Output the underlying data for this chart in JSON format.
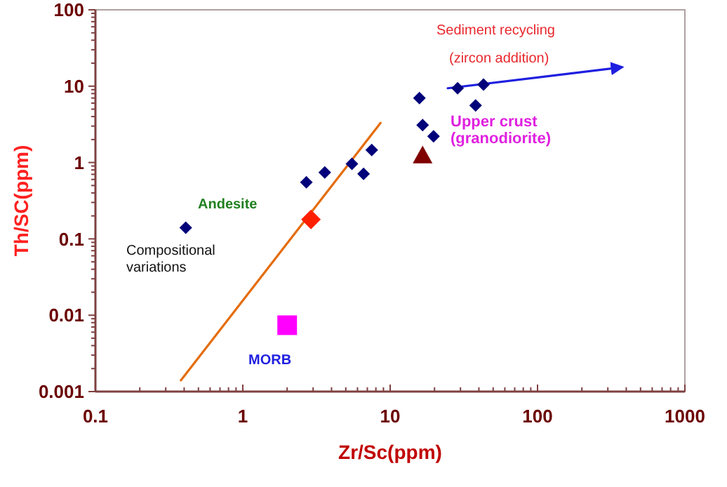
{
  "chart_data": {
    "type": "scatter",
    "xlabel": "Zr/Sc(ppm)",
    "ylabel": "Th/SC(ppm)",
    "log": "xy",
    "grid": false,
    "xlim": [
      0.1,
      1000
    ],
    "ylim": [
      0.001,
      100
    ],
    "xticks": [
      0.1,
      {
        "value": 0.2,
        "label": null
      },
      {
        "value": 0.3,
        "label": null
      },
      {
        "value": 0.4,
        "label": null
      },
      {
        "value": 0.5,
        "label": null
      },
      {
        "value": 0.6,
        "label": null
      },
      {
        "value": 0.7,
        "label": null
      },
      {
        "value": 0.8,
        "label": null
      },
      {
        "value": 0.9,
        "label": null
      },
      1,
      {
        "value": 2,
        "label": null
      },
      {
        "value": 3,
        "label": null
      },
      {
        "value": 4,
        "label": null
      },
      {
        "value": 5,
        "label": null
      },
      {
        "value": 6,
        "label": null
      },
      {
        "value": 7,
        "label": null
      },
      {
        "value": 8,
        "label": null
      },
      {
        "value": 9,
        "label": null
      },
      10,
      {
        "value": 20,
        "label": null
      },
      {
        "value": 30,
        "label": null
      },
      {
        "value": 40,
        "label": null
      },
      {
        "value": 50,
        "label": null
      },
      {
        "value": 60,
        "label": null
      },
      {
        "value": 70,
        "label": null
      },
      {
        "value": 80,
        "label": null
      },
      {
        "value": 90,
        "label": null
      },
      100,
      {
        "value": 200,
        "label": null
      },
      {
        "value": 300,
        "label": null
      },
      {
        "value": 400,
        "label": null
      },
      {
        "value": 500,
        "label": null
      },
      {
        "value": 600,
        "label": null
      },
      {
        "value": 700,
        "label": null
      },
      {
        "value": 800,
        "label": null
      },
      {
        "value": 900,
        "label": null
      },
      1000
    ],
    "yticks": [
      0.001,
      {
        "value": 0.002,
        "label": null
      },
      {
        "value": 0.003,
        "label": null
      },
      {
        "value": 0.004,
        "label": null
      },
      {
        "value": 0.005,
        "label": null
      },
      {
        "value": 0.006,
        "label": null
      },
      {
        "value": 0.007,
        "label": null
      },
      {
        "value": 0.008,
        "label": null
      },
      {
        "value": 0.009,
        "label": null
      },
      0.01,
      {
        "value": 0.02,
        "label": null
      },
      {
        "value": 0.03,
        "label": null
      },
      {
        "value": 0.04,
        "label": null
      },
      {
        "value": 0.05,
        "label": null
      },
      {
        "value": 0.06,
        "label": null
      },
      {
        "value": 0.07,
        "label": null
      },
      {
        "value": 0.08,
        "label": null
      },
      {
        "value": 0.09,
        "label": null
      },
      0.1,
      {
        "value": 0.2,
        "label": null
      },
      {
        "value": 0.3,
        "label": null
      },
      {
        "value": 0.4,
        "label": null
      },
      {
        "value": 0.5,
        "label": null
      },
      {
        "value": 0.6,
        "label": null
      },
      {
        "value": 0.7,
        "label": null
      },
      {
        "value": 0.8,
        "label": null
      },
      {
        "value": 0.9,
        "label": null
      },
      1,
      {
        "value": 2,
        "label": null
      },
      {
        "value": 3,
        "label": null
      },
      {
        "value": 4,
        "label": null
      },
      {
        "value": 5,
        "label": null
      },
      {
        "value": 6,
        "label": null
      },
      {
        "value": 7,
        "label": null
      },
      {
        "value": 8,
        "label": null
      },
      {
        "value": 9,
        "label": null
      },
      10,
      {
        "value": 20,
        "label": null
      },
      {
        "value": 30,
        "label": null
      },
      {
        "value": 40,
        "label": null
      },
      {
        "value": 50,
        "label": null
      },
      {
        "value": 60,
        "label": null
      },
      {
        "value": 70,
        "label": null
      },
      {
        "value": 80,
        "label": null
      },
      {
        "value": 90,
        "label": null
      },
      100
    ],
    "series": [
      {
        "type": "line",
        "color": "#e46c0a",
        "marker": "none",
        "line_style": "solid",
        "x": [
          0.38,
          8.6
        ],
        "values": [
          0.0014,
          3.3
        ]
      },
      {
        "type": "line",
        "color": "#1f1fe0",
        "marker": "none",
        "line_style": "solid",
        "x": [
          24.6,
          372
        ],
        "values": [
          9.4,
          17.7
        ]
      },
      {
        "color": "#00007a",
        "marker": "diamond",
        "x": [
          0.41,
          2.7,
          3.6,
          5.5,
          6.6,
          7.5,
          15.8,
          16.6,
          19.7,
          28.7,
          38,
          43
        ],
        "values": [
          0.14,
          0.55,
          0.74,
          0.96,
          0.71,
          1.46,
          7.0,
          3.1,
          2.2,
          9.4,
          5.6,
          10.5
        ]
      },
      {
        "color": "#ff2000",
        "marker": "diamond",
        "x": [
          2.9
        ],
        "values": [
          0.18
        ]
      },
      {
        "color": "#ff00ff",
        "marker": "square",
        "x": [
          2.0
        ],
        "values": [
          0.0074
        ]
      },
      {
        "color": "#800000",
        "marker": "triangle",
        "x": [
          16.6
        ],
        "values": [
          1.24
        ]
      }
    ],
    "annotations": [
      "Sediment recycling",
      "(zircon addition)",
      "Upper crust",
      "(granodiorite)",
      "Andesite",
      "Compositional",
      "variations",
      "MORB"
    ]
  }
}
